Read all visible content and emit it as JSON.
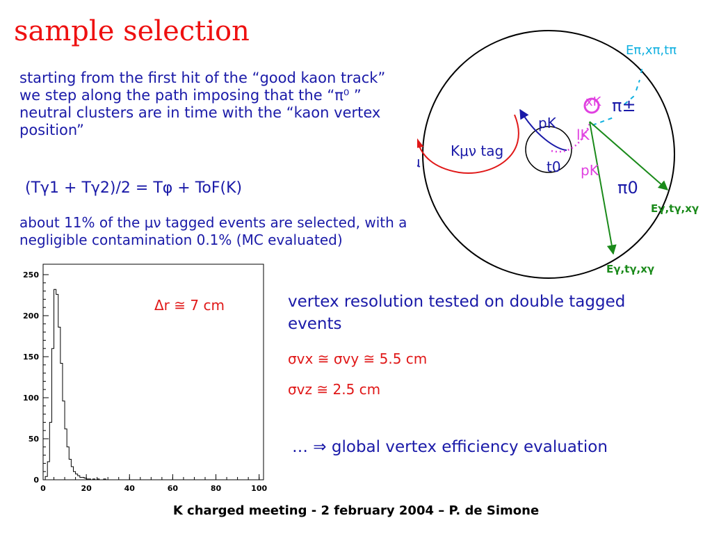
{
  "slide": {
    "title": "sample selection",
    "intro": "starting from the first hit of the  “good kaon track”  we step along the path imposing that  the  “π⁰ ”  neutral clusters are in time with the “kaon vertex position”",
    "formula": "(Tγ1 + Tγ2)/2  =  Tφ + ToF(K)",
    "about": "about 11% of the μν tagged events are selected, with a negligible contamination 0.1% (MC evaluated)",
    "vertex_resolution": "vertex resolution tested on double tagged events",
    "sigma_xy": "σvx ≅ σvy ≅ 5.5 cm",
    "sigma_z": "σvz ≅ 2.5 cm",
    "global": "…  ⇒  global vertex efficiency evaluation",
    "footer": "K charged meeting  - 2 february 2004  – P. de Simone"
  },
  "diagram": {
    "labels": {
      "e_pi": "Eπ,xπ,tπ",
      "x_k": "xK",
      "pi_pm": "π±",
      "p_k_top": "pK",
      "k_mu_nu": "Kμν tag",
      "t_mu": "tμ",
      "t_0": "t0",
      "l_k": "lK",
      "p_k_bottom": "pK",
      "pi_0": "π0",
      "e_gamma_right": "Eγ,tγ,xγ",
      "e_gamma_bottom": "Eγ,tγ,xγ"
    },
    "colors": {
      "red": "#e01818",
      "blue": "#1a1aa8",
      "green": "#1a8a1a",
      "magenta": "#e040e0",
      "cyan": "#10b0e0"
    }
  },
  "chart_data": {
    "type": "histogram",
    "title": "",
    "xlabel": "",
    "ylabel": "",
    "annotation": "Δr ≅ 7 cm",
    "xlim": [
      0,
      100
    ],
    "ylim": [
      0,
      250
    ],
    "xticks": [
      0,
      20,
      40,
      60,
      80,
      100
    ],
    "yticks": [
      0,
      50,
      100,
      150,
      200,
      250
    ],
    "bin_width": 1,
    "x": [
      0,
      1,
      2,
      3,
      4,
      5,
      6,
      7,
      8,
      9,
      10,
      11,
      12,
      13,
      14,
      15,
      16,
      17,
      18,
      19,
      20,
      21,
      22,
      23,
      24,
      25,
      26,
      27,
      28,
      29,
      30,
      31,
      32,
      33,
      34,
      35,
      36,
      37,
      38,
      39,
      40
    ],
    "values": [
      0,
      4,
      22,
      70,
      160,
      232,
      226,
      186,
      142,
      96,
      62,
      40,
      25,
      16,
      10,
      7,
      5,
      3,
      3,
      2,
      1,
      1,
      0,
      1,
      0,
      1,
      0,
      0,
      1,
      0,
      0,
      0,
      0,
      0,
      0,
      0,
      0,
      0,
      0,
      0,
      0
    ]
  }
}
